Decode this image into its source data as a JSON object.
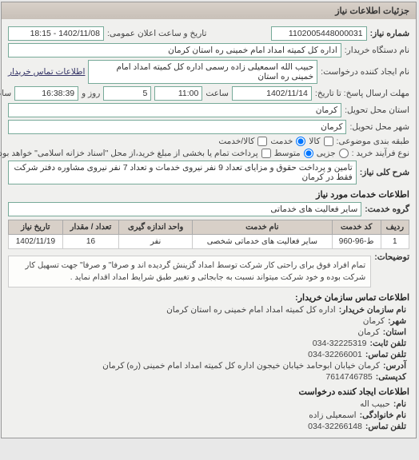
{
  "panel_title": "جزئیات اطلاعات نیاز",
  "header": {
    "req_number_label": "شماره نیاز:",
    "req_number": "1102005448000031",
    "public_date_label": "تاریخ و ساعت اعلان عمومی:",
    "public_date": "1402/11/08 - 18:15",
    "buyer_org_label": "نام دستگاه خریدار:",
    "buyer_org": "اداره کل کمیته امداد امام خمینی  ره  استان کرمان",
    "requester_label": "نام ایجاد کننده درخواست:",
    "requester": "حبیب الله اسمعیلی زاده رسمی  اداره کل کمیته امداد امام خمینی  ره  استان",
    "buyer_contact_label": "اطلاعات تماس خریدار",
    "deadline_label": "مهلت ارسال پاسخ: تا تاریخ:",
    "deadline_date": "1402/11/14",
    "deadline_time_label": "ساعت",
    "deadline_time": "11:00",
    "days_label": "روز و",
    "days": "5",
    "remaining_label": "ساعت باقی مانده",
    "remaining": "16:38:39",
    "delivery_province_label": "استان محل تحویل:",
    "delivery_province": "کرمان",
    "delivery_city_label": "شهر محل تحویل:",
    "delivery_city": "کرمان",
    "supply_type_label": "طبقه بندی موضوعی:",
    "goods_label": "کالا",
    "service_label": "خدمت",
    "both_label": "کالا/خدمت",
    "purchase_type_label": "نوع فرآیند خرید :",
    "minor_label": "جزیی",
    "medium_label": "متوسط",
    "payment_note": "پرداخت تمام یا بخشی از مبلغ خرید،از محل \"اسناد خزانه اسلامی\" خواهد بود.",
    "desc_label": "شرح کلی نیاز:",
    "desc": "تامین و پرداخت حقوق و مزایای تعداد 9 نفر نیروی خدمات و تعداد 7 نفر نیروی مشاوره دفتر شرکت فقط در کرمان"
  },
  "services": {
    "section_title": "اطلاعات خدمات مورد نیاز",
    "group_label": "گروه خدمت:",
    "group": "سایر فعالیت های خدماتی",
    "table": {
      "cols": [
        "ردیف",
        "کد خدمت",
        "نام خدمت",
        "واحد اندازه گیری",
        "تعداد / مقدار",
        "تاریخ نیاز"
      ],
      "rows": [
        [
          "1",
          "ط-96-960",
          "سایر فعالیت های خدماتی شخصی",
          "نفر",
          "16",
          "1402/11/19"
        ]
      ]
    },
    "note_label": "توضیحات:",
    "note": "تمام افراد فوق برای راحتی کار شرکت توسط امداد گزینش گردیده اند و صرفا\" و صرفا\" جهت تسهیل کار شرکت بوده و خود شرکت میتواند نسبت به جابجائی و تغییر طبق شرایط امداد اقدام نماید ."
  },
  "contact_buyer": {
    "title": "اطلاعات تماس سازمان خریدار:",
    "org_label": "نام سازمان خریدار:",
    "org": "اداره کل کمیته امداد امام خمینی ره استان کرمان",
    "city_label": "شهر:",
    "city": "کرمان",
    "province_label": "استان:",
    "province": "کرمان",
    "phone_label": "تلفن ثابت:",
    "phone": "034-32225319",
    "fax_label": "تلفن تماس:",
    "fax": "034-32266001",
    "address_label": "آدرس:",
    "address": "کرمان خیابان ابوحامد خیابان خیجون اداره کل کمیته امداد امام خمینی (ره) کرمان",
    "postal_label": "کدپستی:",
    "postal": "7614746785"
  },
  "contact_creator": {
    "title": "اطلاعات ایجاد کننده درخواست",
    "name_label": "نام:",
    "name": "حبیب اله",
    "family_label": "نام خانوادگی:",
    "family": "اسمعیلی زاده",
    "phone_label": "تلفن تماس:",
    "phone": "034-32266148"
  }
}
